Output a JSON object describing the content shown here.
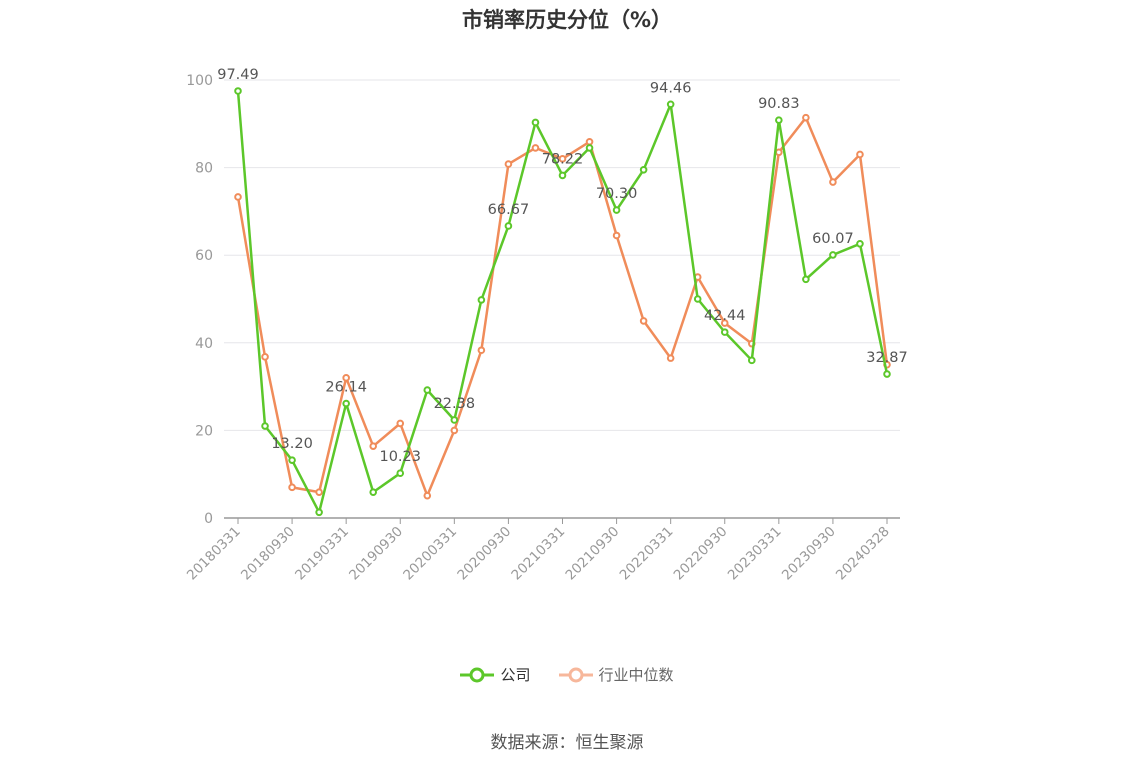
{
  "title": "市销率历史分位（%）",
  "source": "数据来源：恒生聚源",
  "colors": {
    "company": "#5cc72a",
    "industry": "#f08c5a",
    "industry_legend": "#f7b79b",
    "grid": "#e6e6ea",
    "axis": "#999999"
  },
  "chart_data": {
    "type": "line",
    "title": "市销率历史分位（%）",
    "x": [
      "20180331",
      "20180630",
      "20180930",
      "20181231",
      "20190331",
      "20190630",
      "20190930",
      "20191231",
      "20200331",
      "20200630",
      "20200930",
      "20201231",
      "20210331",
      "20210630",
      "20210930",
      "20211231",
      "20220331",
      "20220630",
      "20220930",
      "20221231",
      "20230331",
      "20230630",
      "20230930",
      "20231231",
      "20240328"
    ],
    "x_tick_labels": [
      "20180331",
      "20180930",
      "20190331",
      "20190930",
      "20200331",
      "20200930",
      "20210331",
      "20210930",
      "20220331",
      "20220930",
      "20230331",
      "20230930",
      "20240328"
    ],
    "ylim": [
      0,
      100
    ],
    "y_ticks": [
      "0",
      "20",
      "40",
      "60",
      "80",
      "100"
    ],
    "grid": true,
    "legend_position": "bottom",
    "series": [
      {
        "name": "公司",
        "values": [
          97.49,
          21.0,
          13.2,
          1.3,
          26.14,
          5.9,
          10.23,
          29.2,
          22.38,
          49.8,
          66.67,
          90.3,
          78.22,
          84.5,
          70.3,
          79.5,
          94.46,
          50.0,
          42.44,
          36.0,
          90.83,
          54.5,
          60.07,
          62.6,
          32.87
        ]
      },
      {
        "name": "行业中位数",
        "values": [
          73.3,
          36.8,
          7.0,
          5.9,
          32.0,
          16.4,
          21.6,
          5.1,
          20.0,
          38.3,
          80.8,
          84.5,
          82.0,
          85.9,
          64.5,
          45.0,
          36.5,
          55.0,
          44.5,
          39.8,
          83.5,
          91.4,
          76.7,
          83.0,
          35.0
        ]
      }
    ],
    "data_labels": [
      {
        "index": 0,
        "text": "97.49"
      },
      {
        "index": 2,
        "text": "13.20"
      },
      {
        "index": 4,
        "text": "26.14"
      },
      {
        "index": 6,
        "text": "10.23"
      },
      {
        "index": 8,
        "text": "22.38"
      },
      {
        "index": 10,
        "text": "66.67"
      },
      {
        "index": 12,
        "text": "78.22"
      },
      {
        "index": 14,
        "text": "70.30"
      },
      {
        "index": 16,
        "text": "94.46"
      },
      {
        "index": 18,
        "text": "42.44"
      },
      {
        "index": 20,
        "text": "90.83"
      },
      {
        "index": 22,
        "text": "60.07"
      },
      {
        "index": 24,
        "text": "32.87"
      }
    ]
  }
}
